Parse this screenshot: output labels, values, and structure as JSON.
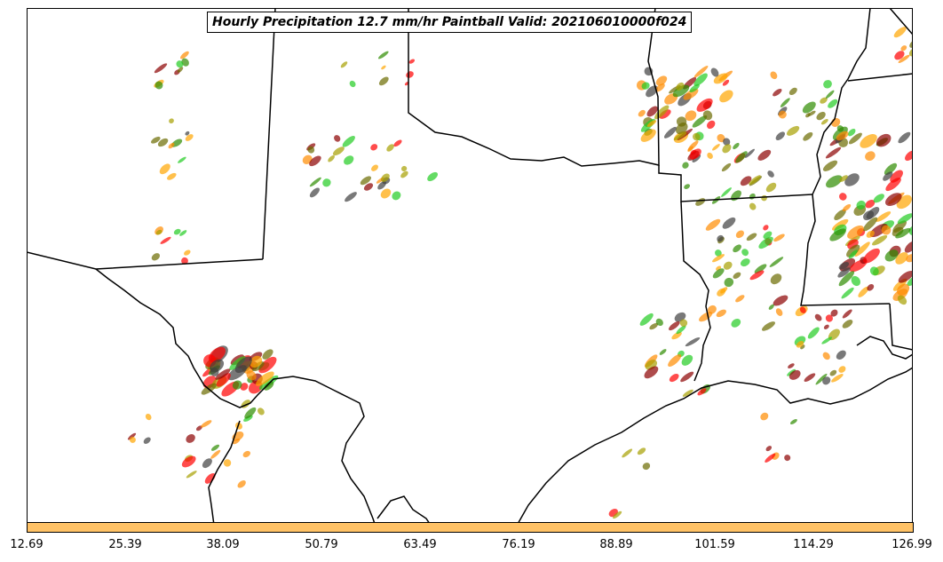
{
  "title": "Hourly Precipitation 12.7 mm/hr Paintball Valid: 202106010000f024",
  "colorbar": {
    "ticks": [
      "12.69",
      "25.39",
      "38.09",
      "50.79",
      "63.49",
      "76.19",
      "88.89",
      "101.59",
      "114.29",
      "126.99"
    ],
    "fill_color": "#ffc266"
  },
  "paintball_colors": [
    "#ff0000",
    "#ff8c00",
    "#2e8b00",
    "#22cc22",
    "#8b0000",
    "#a6a000",
    "#404040",
    "#ffa500",
    "#6b6b00"
  ],
  "map": {
    "boundary_color": "#000000",
    "background": "#ffffff"
  }
}
